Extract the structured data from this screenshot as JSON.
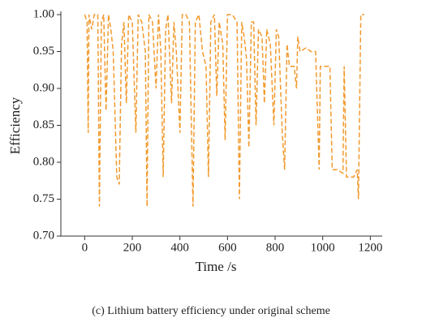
{
  "chart_data": {
    "type": "line",
    "caption": "(c) Lithium battery efficiency under original scheme",
    "xlabel": "Time /s",
    "ylabel": "Efficiency",
    "xlim": [
      -100,
      1250
    ],
    "ylim": [
      0.7,
      1.0
    ],
    "xticks": [
      0,
      200,
      400,
      600,
      800,
      1000,
      1200
    ],
    "yticks": [
      {
        "value": 0.7,
        "label": "0.70"
      },
      0.75,
      {
        "value": 0.8,
        "label": "0.80"
      },
      0.85,
      {
        "value": 0.9,
        "label": "0.90"
      },
      0.95,
      {
        "value": 1.0,
        "label": "1.00"
      }
    ],
    "x": [
      0,
      10,
      15,
      18,
      30,
      40,
      55,
      62,
      70,
      80,
      85,
      90,
      100,
      110,
      120,
      135,
      145,
      155,
      165,
      175,
      185,
      200,
      215,
      225,
      240,
      255,
      262,
      270,
      285,
      300,
      310,
      320,
      330,
      340,
      350,
      365,
      375,
      385,
      400,
      410,
      425,
      440,
      455,
      465,
      480,
      495,
      510,
      520,
      530,
      545,
      555,
      565,
      580,
      590,
      600,
      620,
      640,
      650,
      660,
      670,
      680,
      690,
      700,
      710,
      720,
      730,
      745,
      755,
      765,
      780,
      795,
      805,
      815,
      830,
      840,
      850,
      860,
      880,
      890,
      895,
      905,
      930,
      950,
      970,
      985,
      990,
      1010,
      1030,
      1040,
      1060,
      1085,
      1090,
      1100,
      1130,
      1145,
      1150,
      1160,
      1175
    ],
    "series": [
      {
        "name": "Efficiency",
        "color": "#f29a2e",
        "values": [
          1.0,
          0.99,
          0.84,
          1.0,
          0.98,
          1.0,
          1.0,
          0.74,
          0.99,
          1.0,
          0.93,
          0.87,
          1.0,
          0.98,
          0.95,
          0.78,
          0.77,
          0.96,
          0.99,
          0.88,
          1.0,
          0.99,
          0.84,
          1.0,
          0.99,
          0.95,
          0.74,
          1.0,
          0.99,
          0.9,
          1.0,
          0.95,
          0.78,
          0.98,
          1.0,
          0.88,
          0.99,
          0.95,
          0.84,
          1.0,
          1.0,
          0.99,
          0.74,
          0.99,
          1.0,
          0.95,
          0.93,
          0.78,
          0.99,
          1.0,
          0.89,
          0.99,
          0.96,
          0.83,
          1.0,
          1.0,
          0.99,
          0.75,
          0.99,
          0.97,
          0.94,
          0.82,
          0.99,
          0.99,
          0.85,
          0.98,
          0.97,
          0.88,
          0.98,
          0.96,
          0.85,
          0.98,
          0.97,
          0.84,
          0.79,
          0.96,
          0.93,
          0.93,
          0.9,
          0.97,
          0.95,
          0.955,
          0.95,
          0.95,
          0.79,
          0.93,
          0.93,
          0.93,
          0.79,
          0.79,
          0.785,
          0.93,
          0.78,
          0.78,
          0.79,
          0.75,
          1.0,
          1.0
        ]
      }
    ]
  }
}
